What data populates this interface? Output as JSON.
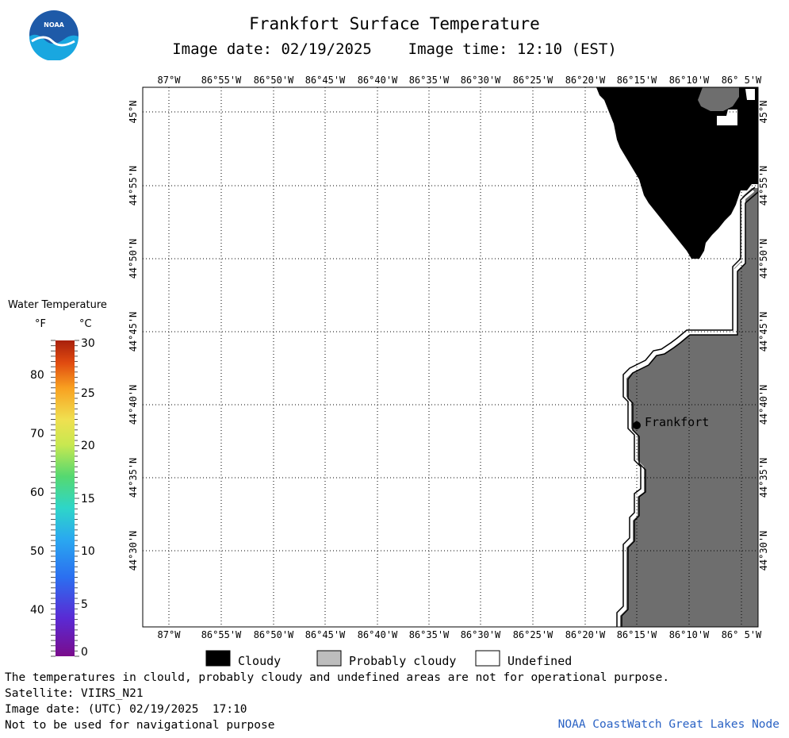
{
  "header": {
    "title": "Frankfort Surface Temperature",
    "image_date_label": "Image date: 02/19/2025",
    "image_time_label": "Image time: 12:10 (EST)"
  },
  "logo": {
    "text": "NOAA",
    "icon": "noaa-logo-icon",
    "color_top": "#1e5aa8",
    "color_bottom": "#19a7e0"
  },
  "map": {
    "lon_labels": [
      "87°W",
      "86°55'W",
      "86°50'W",
      "86°45'W",
      "86°40'W",
      "86°35'W",
      "86°30'W",
      "86°25'W",
      "86°20'W",
      "86°15'W",
      "86°10'W",
      "86° 5'W"
    ],
    "lat_labels": [
      "45°N",
      "44°55'N",
      "44°50'N",
      "44°45'N",
      "44°40'N",
      "44°35'N",
      "44°30'N"
    ],
    "place_label": "Frankfort",
    "colors": {
      "cloudy": "#000000",
      "probably_cloudy": "#6e6e6e",
      "undefined": "#ffffff",
      "grid": "#000000"
    }
  },
  "colorbar": {
    "title": "Water Temperature",
    "unit_f": "°F",
    "unit_c": "°C",
    "f_ticks": [
      "80",
      "70",
      "60",
      "50",
      "40"
    ],
    "c_ticks": [
      "30",
      "25",
      "20",
      "15",
      "10",
      "5",
      "0"
    ]
  },
  "legend": {
    "cloudy": "Cloudy",
    "probably_cloudy": "Probably cloudy",
    "undefined": "Undefined"
  },
  "footer": {
    "disclaimer": "The temperatures in clould, probably cloudy and undefined areas are not for operational purpose.",
    "satellite": "Satellite: VIIRS_N21",
    "image_date_utc": "Image date: (UTC) 02/19/2025  17:10",
    "navigation": "Not to be used for navigational purpose",
    "credit": "NOAA CoastWatch Great Lakes Node"
  }
}
